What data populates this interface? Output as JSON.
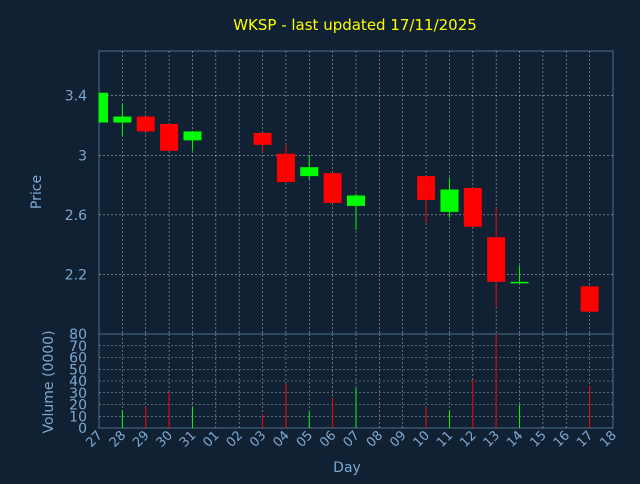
{
  "chart_data": [
    {
      "type": "candlestick",
      "title": "WKSP - last updated 17/11/2025",
      "ylabel": "Price",
      "ylim": [
        1.8,
        3.7
      ],
      "yticks": [
        "3.4",
        "3",
        "2.6",
        "2.2"
      ],
      "grid": true,
      "candles": [
        {
          "day": "27",
          "open": 3.22,
          "close": 3.42,
          "high": 3.42,
          "low": 3.22
        },
        {
          "day": "28",
          "open": 3.22,
          "close": 3.26,
          "high": 3.34,
          "low": 3.13
        },
        {
          "day": "29",
          "open": 3.26,
          "close": 3.16,
          "high": 3.26,
          "low": 3.16
        },
        {
          "day": "30",
          "open": 3.21,
          "close": 3.03,
          "high": 3.21,
          "low": 3.03
        },
        {
          "day": "31",
          "open": 3.1,
          "close": 3.16,
          "high": 3.16,
          "low": 3.03
        },
        {
          "day": "03",
          "open": 3.15,
          "close": 3.07,
          "high": 3.15,
          "low": 3.02
        },
        {
          "day": "04",
          "open": 3.01,
          "close": 2.82,
          "high": 3.07,
          "low": 2.82
        },
        {
          "day": "05",
          "open": 2.86,
          "close": 2.92,
          "high": 3.0,
          "low": 2.84
        },
        {
          "day": "06",
          "open": 2.88,
          "close": 2.68,
          "high": 2.88,
          "low": 2.68
        },
        {
          "day": "07",
          "open": 2.66,
          "close": 2.73,
          "high": 2.74,
          "low": 2.5
        },
        {
          "day": "10",
          "open": 2.86,
          "close": 2.7,
          "high": 2.86,
          "low": 2.55
        },
        {
          "day": "11",
          "open": 2.62,
          "close": 2.77,
          "high": 2.85,
          "low": 2.58
        },
        {
          "day": "12",
          "open": 2.78,
          "close": 2.52,
          "high": 2.78,
          "low": 2.52
        },
        {
          "day": "13",
          "open": 2.45,
          "close": 2.15,
          "high": 2.65,
          "low": 1.98
        },
        {
          "day": "14",
          "open": 2.14,
          "close": 2.15,
          "high": 2.26,
          "low": 2.14
        },
        {
          "day": "17",
          "open": 2.12,
          "close": 1.95,
          "high": 2.12,
          "low": 1.95
        }
      ]
    },
    {
      "type": "bar",
      "ylabel": "Volume (0000)",
      "xlabel": "Day",
      "ylim": [
        0,
        80
      ],
      "yticks": [
        "80",
        "70",
        "60",
        "50",
        "40",
        "30",
        "20",
        "10",
        "0"
      ],
      "categories": [
        "27",
        "28",
        "29",
        "30",
        "31",
        "01",
        "02",
        "03",
        "04",
        "05",
        "06",
        "07",
        "08",
        "09",
        "10",
        "11",
        "12",
        "13",
        "14",
        "15",
        "16",
        "17",
        "18"
      ],
      "values": [
        0,
        15,
        18,
        31,
        18,
        0,
        0,
        12,
        38,
        14,
        26,
        34,
        0,
        0,
        18,
        15,
        41,
        80,
        20,
        0,
        0,
        36,
        0
      ],
      "direction": [
        "",
        "up",
        "down",
        "down",
        "up",
        "",
        "",
        "down",
        "down",
        "up",
        "down",
        "up",
        "",
        "",
        "down",
        "up",
        "down",
        "down",
        "up",
        "",
        "",
        "down",
        ""
      ]
    }
  ],
  "colors": {
    "background": "#0f2133",
    "plot_border": "#4e6f8c",
    "grid": "#d0d8e0",
    "title": "#ffff00",
    "axis_text": "#7fa8d0",
    "up": "#00ff00",
    "down": "#ff0000"
  }
}
